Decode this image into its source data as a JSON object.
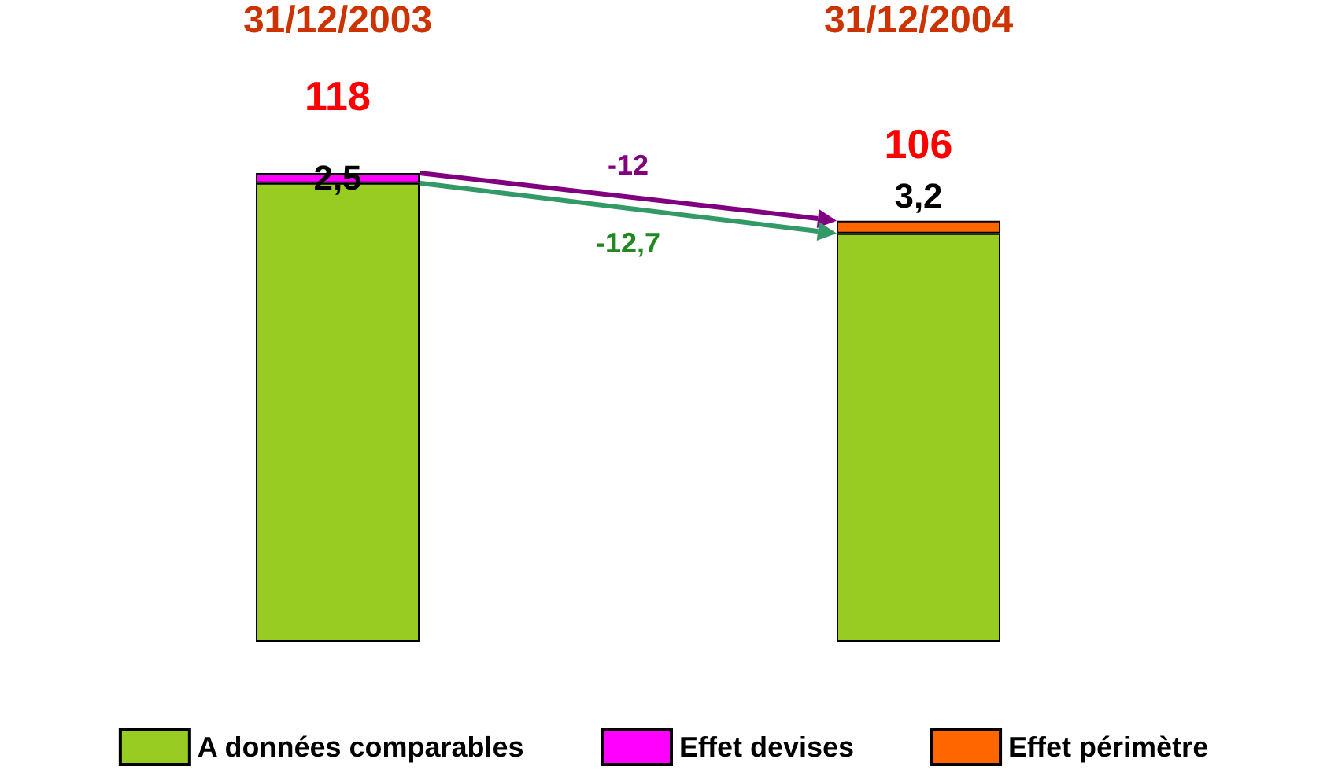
{
  "chart_data": {
    "type": "bar",
    "stacked": true,
    "categories": [
      "31/12/2003",
      "31/12/2004"
    ],
    "series": [
      {
        "name": "A données comparables",
        "color": "#99cc22",
        "values": [
          115.5,
          102.8
        ],
        "value_labels": [
          null,
          null
        ]
      },
      {
        "name": "Effet devises",
        "color": "#ff00ff",
        "values": [
          2.5,
          null
        ],
        "value_labels": [
          "2,5",
          null
        ]
      },
      {
        "name": "Effet périmètre",
        "color": "#ff6600",
        "values": [
          null,
          3.2
        ],
        "value_labels": [
          null,
          "3,2"
        ]
      }
    ],
    "totals": [
      "118",
      "106"
    ],
    "annotations": [
      "-12",
      "-12,7"
    ],
    "legend": "bottom"
  }
}
